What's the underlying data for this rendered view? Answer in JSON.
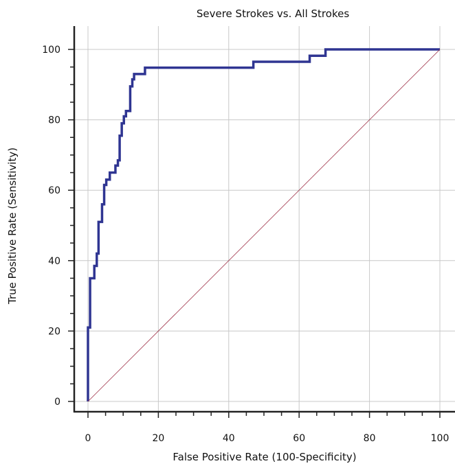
{
  "chart_data": {
    "type": "line",
    "title": "Severe Strokes vs. All Strokes",
    "xlabel": "False Positive Rate (100-Specificity)",
    "ylabel": "True Positive Rate (Sensitivity)",
    "xlim": [
      0,
      100
    ],
    "ylim": [
      0,
      100
    ],
    "xticks": [
      "0",
      "20",
      "40",
      "60",
      "80",
      "100"
    ],
    "yticks": [
      "0",
      "20",
      "40",
      "60",
      "80",
      "100"
    ],
    "grid": true,
    "legend": "none",
    "series": [
      {
        "color": "#2f3592",
        "x": [
          0,
          0,
          0.6,
          0.6,
          1.8,
          1.8,
          2.5,
          2.5,
          3.0,
          3.0,
          4.0,
          4.0,
          4.6,
          4.6,
          5.2,
          5.2,
          6.2,
          6.2,
          7.8,
          7.8,
          8.5,
          8.5,
          9.0,
          9.0,
          9.6,
          9.6,
          10.2,
          10.2,
          10.8,
          10.8,
          12.0,
          12.0,
          12.6,
          12.6,
          13.1,
          13.1,
          16.2,
          16.2,
          47.0,
          47.0,
          63.0,
          63.0,
          67.5,
          67.5,
          100
        ],
        "y": [
          0,
          21,
          21,
          35,
          35,
          38.5,
          38.5,
          42,
          42,
          51,
          51,
          56,
          56,
          61.5,
          61.5,
          63,
          63,
          65,
          65,
          67,
          67,
          68.5,
          68.5,
          75.5,
          75.5,
          79,
          79,
          81,
          81,
          82.5,
          82.5,
          89.5,
          89.5,
          91.5,
          91.5,
          93,
          93,
          94.8,
          94.8,
          96.5,
          96.5,
          98.2,
          98.2,
          100,
          100
        ]
      },
      {
        "color": "#a0344a",
        "x": [
          0,
          100
        ],
        "y": [
          0,
          100
        ]
      }
    ]
  }
}
